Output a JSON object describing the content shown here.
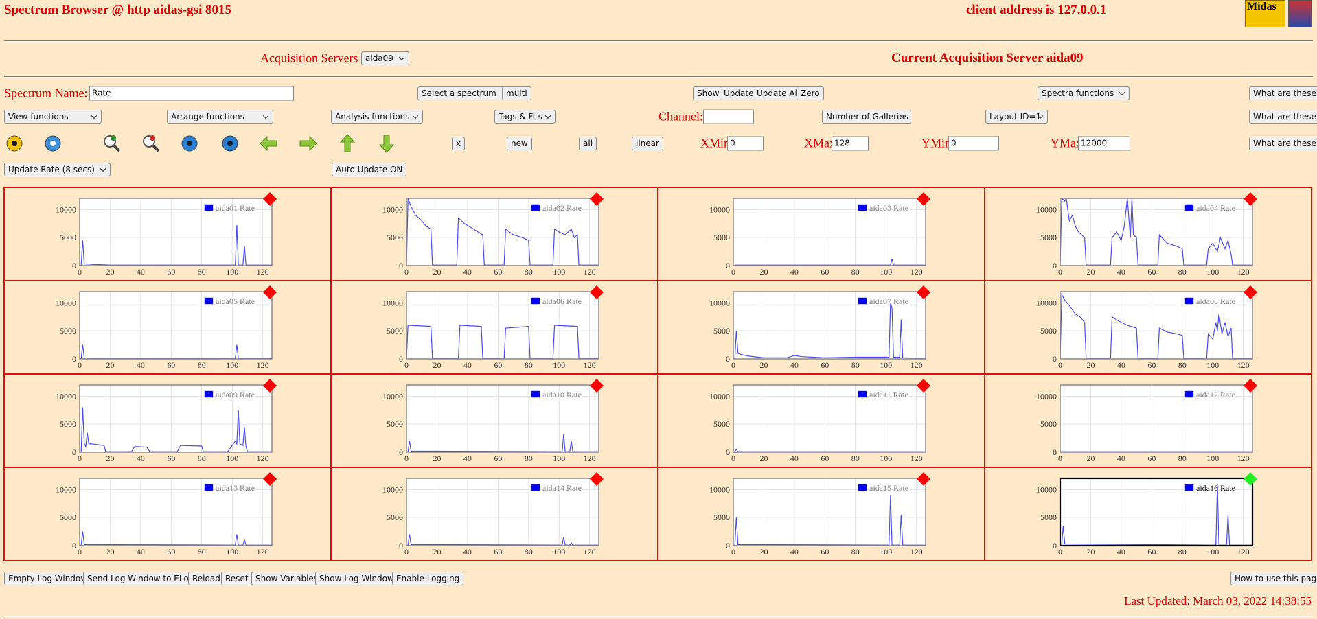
{
  "header": {
    "title": "Spectrum Browser @ http aidas-gsi 8015",
    "client": "client address is 127.0.0.1",
    "logo": "Midas"
  },
  "server": {
    "label": "Acquisition Servers",
    "selected": "aida09",
    "current": "Current Acquisition Server aida09"
  },
  "row1": {
    "label": "Spectrum Name:",
    "input": "Rate",
    "select": "Select a spectrum",
    "multi": "multi",
    "buttons": [
      "Show",
      "Update",
      "Update All",
      "Zero"
    ],
    "functions": "Spectra functions",
    "help": "What are these?"
  },
  "row2": {
    "selects": [
      "View functions",
      "Arrange functions",
      "Analysis functions",
      "Tags & Fits"
    ],
    "channel": "Channel:",
    "selects2": [
      "Number of Galleries",
      "Layout ID=1"
    ],
    "help": "What are these?"
  },
  "row3": {
    "buttons": [
      "x",
      "new",
      "all",
      "linear"
    ],
    "fields": [
      {
        "label": "XMin",
        "value": 0
      },
      {
        "label": "XMax",
        "value": 128
      },
      {
        "label": "YMin",
        "value": 0
      },
      {
        "label": "YMax",
        "value": 12000
      }
    ],
    "help": "What are these?"
  },
  "row4": {
    "rate": "Update Rate (8 secs)",
    "auto": "Auto Update ON"
  },
  "gallery": {
    "xlim": [
      0,
      126
    ],
    "ylim": [
      0,
      12000
    ],
    "xticks": [
      0,
      20,
      40,
      60,
      80,
      100,
      120
    ],
    "yticks": [
      0,
      5000,
      10000
    ],
    "line_color": "#4b4bf0",
    "legend_color": "#0000ff",
    "grid": true,
    "panels": [
      {
        "name": "aida01 Rate",
        "marker_color": "#ff0000",
        "x": [
          0,
          1,
          2,
          3,
          10,
          20,
          102,
          103,
          104,
          107,
          108,
          109,
          126
        ],
        "values": [
          0,
          100,
          4500,
          300,
          200,
          100,
          100,
          7200,
          100,
          100,
          3500,
          100,
          100
        ]
      },
      {
        "name": "aida02 Rate",
        "marker_color": "#ff0000",
        "x": [
          0,
          1,
          3,
          6,
          10,
          13,
          16,
          17,
          33,
          34,
          38,
          44,
          50,
          51,
          64,
          65,
          70,
          76,
          80,
          81,
          96,
          97,
          100,
          104,
          108,
          110,
          112,
          113,
          126
        ],
        "values": [
          0,
          12000,
          10500,
          9000,
          8000,
          7000,
          6500,
          100,
          100,
          8500,
          7500,
          6500,
          5500,
          100,
          100,
          6500,
          5500,
          5000,
          4500,
          100,
          100,
          6500,
          6000,
          5500,
          6500,
          5000,
          5500,
          100,
          100
        ]
      },
      {
        "name": "aida03 Rate",
        "marker_color": "#ff0000",
        "x": [
          0,
          1,
          103,
          104,
          105,
          126
        ],
        "values": [
          0,
          100,
          100,
          1200,
          100,
          100
        ]
      },
      {
        "name": "aida04 Rate",
        "marker_color": "#ff0000",
        "x": [
          0,
          1,
          3,
          4,
          6,
          8,
          10,
          12,
          14,
          16,
          17,
          33,
          34,
          37,
          40,
          42,
          44,
          46,
          47,
          48,
          50,
          51,
          64,
          65,
          70,
          76,
          80,
          81,
          96,
          97,
          100,
          103,
          105,
          108,
          110,
          112,
          113,
          126
        ],
        "values": [
          0,
          12000,
          11500,
          12000,
          8000,
          9000,
          7000,
          6000,
          5500,
          5000,
          100,
          100,
          5000,
          6000,
          4500,
          7000,
          12000,
          5000,
          12000,
          5500,
          5000,
          100,
          100,
          5500,
          4000,
          3500,
          3000,
          100,
          100,
          3000,
          4000,
          2500,
          5000,
          3000,
          4500,
          2000,
          100,
          100
        ]
      },
      {
        "name": "aida05 Rate",
        "marker_color": "#ff0000",
        "x": [
          0,
          1,
          2,
          3,
          102,
          103,
          104,
          126
        ],
        "values": [
          0,
          100,
          2500,
          150,
          100,
          2500,
          100,
          100
        ]
      },
      {
        "name": "aida06 Rate",
        "marker_color": "#ff0000",
        "x": [
          0,
          1,
          16,
          17,
          34,
          35,
          49,
          50,
          64,
          65,
          80,
          81,
          96,
          97,
          112,
          113,
          126
        ],
        "values": [
          0,
          6000,
          5800,
          100,
          100,
          6000,
          5800,
          100,
          100,
          5500,
          5800,
          100,
          100,
          6000,
          5800,
          100,
          100
        ]
      },
      {
        "name": "aida07 Rate",
        "marker_color": "#ff0000",
        "x": [
          0,
          1,
          2,
          3,
          5,
          10,
          20,
          35,
          40,
          45,
          60,
          80,
          90,
          102,
          103,
          104,
          105,
          109,
          110,
          111,
          126
        ],
        "values": [
          0,
          100,
          5000,
          1000,
          800,
          500,
          200,
          200,
          600,
          400,
          200,
          300,
          300,
          300,
          10000,
          9000,
          300,
          300,
          7000,
          200,
          100
        ]
      },
      {
        "name": "aida08 Rate",
        "marker_color": "#ff0000",
        "x": [
          0,
          1,
          3,
          6,
          10,
          13,
          16,
          17,
          33,
          34,
          38,
          44,
          50,
          51,
          64,
          65,
          70,
          76,
          80,
          81,
          96,
          97,
          100,
          102,
          103,
          104,
          106,
          108,
          110,
          112,
          113,
          126
        ],
        "values": [
          0,
          11500,
          10500,
          9500,
          8000,
          7500,
          6500,
          100,
          100,
          7500,
          6800,
          6000,
          5500,
          100,
          100,
          5500,
          4800,
          4500,
          4200,
          100,
          100,
          4500,
          3500,
          6500,
          5000,
          8000,
          4500,
          6500,
          4000,
          5500,
          100,
          100
        ]
      },
      {
        "name": "aida09 Rate",
        "marker_color": "#ff0000",
        "x": [
          0,
          1,
          2,
          3,
          4,
          5,
          6,
          8,
          16,
          17,
          34,
          36,
          44,
          46,
          64,
          66,
          80,
          81,
          97,
          100,
          102,
          103,
          104,
          105,
          107,
          108,
          109,
          110,
          126
        ],
        "values": [
          0,
          100,
          8000,
          1500,
          1000,
          3500,
          1500,
          1500,
          1200,
          100,
          100,
          1000,
          900,
          100,
          100,
          1200,
          1100,
          100,
          100,
          1200,
          2000,
          1500,
          7500,
          1500,
          1200,
          4500,
          1000,
          100,
          100
        ]
      },
      {
        "name": "aida10 Rate",
        "marker_color": "#ff0000",
        "x": [
          0,
          1,
          2,
          3,
          102,
          103,
          104,
          107,
          108,
          109,
          126
        ],
        "values": [
          0,
          100,
          2000,
          200,
          100,
          3200,
          100,
          100,
          2000,
          100,
          100
        ]
      },
      {
        "name": "aida11 Rate",
        "marker_color": "#ff0000",
        "x": [
          0,
          1,
          2,
          3,
          126
        ],
        "values": [
          0,
          100,
          500,
          100,
          100
        ]
      },
      {
        "name": "aida12 Rate",
        "marker_color": "#ff0000",
        "x": [
          0,
          126
        ],
        "values": [
          100,
          100
        ]
      },
      {
        "name": "aida13 Rate",
        "marker_color": "#ff0000",
        "x": [
          0,
          1,
          2,
          3,
          102,
          103,
          104,
          107,
          108,
          109,
          126
        ],
        "values": [
          0,
          100,
          2500,
          200,
          100,
          2000,
          100,
          100,
          1000,
          100,
          100
        ]
      },
      {
        "name": "aida14 Rate",
        "marker_color": "#ff0000",
        "x": [
          0,
          1,
          2,
          3,
          102,
          103,
          104,
          107,
          108,
          109,
          126
        ],
        "values": [
          0,
          100,
          2000,
          200,
          100,
          1500,
          100,
          100,
          500,
          100,
          100
        ]
      },
      {
        "name": "aida15 Rate",
        "marker_color": "#ff0000",
        "x": [
          0,
          1,
          2,
          3,
          102,
          103,
          104,
          109,
          110,
          111,
          126
        ],
        "values": [
          0,
          100,
          5000,
          200,
          100,
          9000,
          100,
          100,
          5500,
          100,
          100
        ]
      },
      {
        "name": "aida16 Rate",
        "marker_color": "#22ee22",
        "active": true,
        "x": [
          0,
          1,
          2,
          3,
          102,
          103,
          104,
          109,
          110,
          111,
          126
        ],
        "values": [
          0,
          100,
          3500,
          300,
          100,
          11000,
          100,
          100,
          5500,
          100,
          100
        ]
      }
    ]
  },
  "footer": {
    "buttons": [
      "Empty Log Window",
      "Send Log Window to ELog",
      "Reload",
      "Reset",
      "Show Variables",
      "Show Log Window",
      "Enable Logging"
    ],
    "help": "How to use this page",
    "updated": "Last Updated: March 03, 2022 14:38:55"
  }
}
